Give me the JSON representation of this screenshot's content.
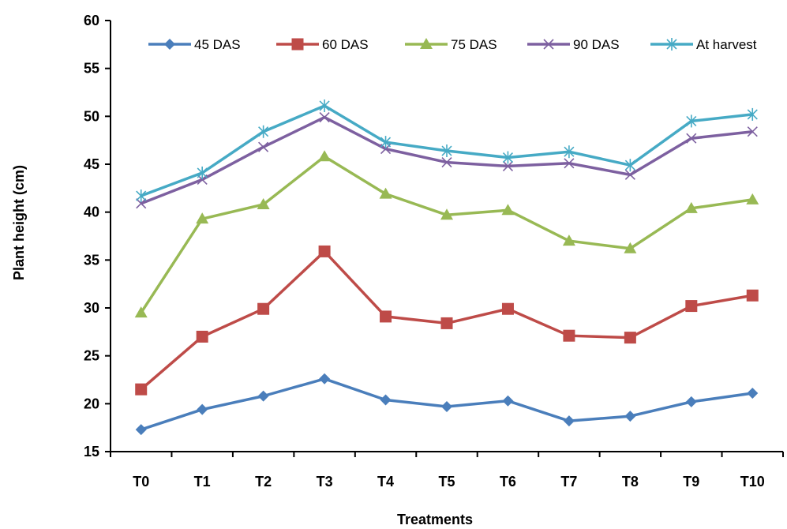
{
  "chart_data": {
    "type": "line",
    "title": "",
    "xlabel": "Treatments",
    "ylabel": "Plant height (cm)",
    "ylim": [
      15,
      60
    ],
    "yticks": [
      15,
      20,
      25,
      30,
      35,
      40,
      45,
      50,
      55,
      60
    ],
    "categories": [
      "T0",
      "T1",
      "T2",
      "T3",
      "T4",
      "T5",
      "T6",
      "T7",
      "T8",
      "T9",
      "T10"
    ],
    "grid": false,
    "legend_position": "top",
    "series": [
      {
        "name": "45 DAS",
        "color": "#4a7ebb",
        "marker": "diamond",
        "values": [
          17.3,
          19.4,
          20.8,
          22.6,
          20.4,
          19.7,
          20.3,
          18.2,
          18.7,
          20.2,
          21.1
        ]
      },
      {
        "name": "60 DAS",
        "color": "#be4b48",
        "marker": "square",
        "values": [
          21.5,
          27.0,
          29.9,
          35.9,
          29.1,
          28.4,
          29.9,
          27.1,
          26.9,
          30.2,
          31.3
        ]
      },
      {
        "name": "75 DAS",
        "color": "#98b954",
        "marker": "triangle",
        "values": [
          29.5,
          39.3,
          40.8,
          45.8,
          41.9,
          39.7,
          40.2,
          37.0,
          36.2,
          40.4,
          41.3
        ]
      },
      {
        "name": "90 DAS",
        "color": "#7d60a0",
        "marker": "x",
        "values": [
          40.9,
          43.4,
          46.8,
          49.9,
          46.6,
          45.2,
          44.8,
          45.1,
          43.9,
          47.7,
          48.4
        ]
      },
      {
        "name": "At harvest",
        "color": "#46aac5",
        "marker": "star",
        "values": [
          41.7,
          44.1,
          48.4,
          51.1,
          47.3,
          46.4,
          45.7,
          46.3,
          44.9,
          49.5,
          50.2
        ]
      }
    ]
  }
}
